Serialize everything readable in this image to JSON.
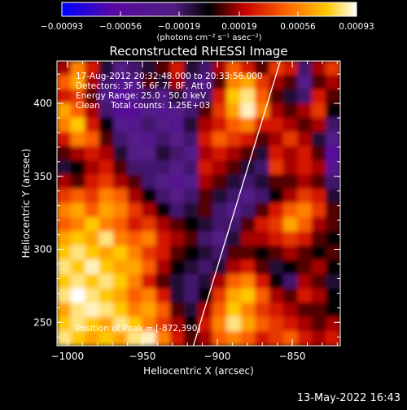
{
  "colorbar": {
    "ticks": [
      "-0.00093",
      "-0.00056",
      "-0.00019",
      "0.00019",
      "0.00056",
      "0.00093"
    ],
    "unit_label": "(photons cm⁻² s⁻¹ asec⁻²)"
  },
  "plot": {
    "title": "Reconstructed RHESSI Image",
    "xlabel": "Heliocentric X (arcsec)",
    "ylabel": "Heliocentric Y (arcsec)",
    "info": [
      "17-Aug-2012 20:32:48.000 to 20:33:56.000",
      "Detectors: 3F 5F 6F 7F 8F, Att 0",
      "Energy Range: 25.0 - 50.0 keV",
      "Clean    Total counts: 1.25E+03"
    ],
    "peak_label": "Position of Peak = [-872,390]"
  },
  "footer": {
    "timestamp": "13-May-2022 16:43"
  },
  "chart_data": {
    "type": "heatmap",
    "title": "Reconstructed RHESSI Image",
    "xlabel": "Heliocentric X (arcsec)",
    "ylabel": "Heliocentric Y (arcsec)",
    "xlim": [
      -1007,
      -818
    ],
    "ylim": [
      234,
      429
    ],
    "xticks": [
      -1000,
      -950,
      -900,
      -850
    ],
    "yticks": [
      250,
      300,
      350,
      400
    ],
    "colorbar_range": [
      -0.00093,
      0.00093
    ],
    "colorbar_ticks": [
      -0.00093,
      -0.00056,
      -0.00019,
      0.00019,
      0.00056,
      0.00093
    ],
    "colormap": [
      "#0000ff",
      "#5a0aa0",
      "#501e82",
      "#000000",
      "#c80000",
      "#ff6400",
      "#ffc800",
      "#ffffff"
    ],
    "peak_position": [
      -872,
      390
    ],
    "limb_line": [
      [
        -916,
        234
      ],
      [
        -858,
        429
      ]
    ],
    "field_rows": 20,
    "field_cols": 20,
    "field": [
      [
        0.2,
        0.6,
        0.3,
        -0.1,
        -0.3,
        -0.2,
        -0.1,
        0.1,
        0.3,
        -0.1,
        -0.2,
        0.2,
        0.5,
        0.3,
        0.1,
        0.4,
        0.3,
        -0.2,
        0.2,
        0.4
      ],
      [
        0.5,
        0.7,
        0.2,
        -0.2,
        -0.4,
        -0.3,
        0.1,
        -0.1,
        0.2,
        -0.2,
        -0.3,
        0.1,
        0.6,
        0.7,
        0.4,
        0.2,
        0.1,
        -0.3,
        0.1,
        0.2
      ],
      [
        0.3,
        0.4,
        0.1,
        -0.3,
        -0.6,
        -0.4,
        -0.2,
        -0.3,
        -0.1,
        -0.3,
        -0.2,
        0.3,
        0.8,
        0.9,
        0.5,
        0.1,
        -0.1,
        -0.2,
        0.3,
        0.1
      ],
      [
        0.7,
        0.5,
        0.2,
        -0.2,
        -0.5,
        -0.5,
        -0.3,
        -0.4,
        -0.3,
        -0.2,
        0.1,
        0.4,
        0.7,
        0.95,
        0.6,
        0.2,
        0.1,
        0.2,
        0.4,
        0.0
      ],
      [
        0.6,
        0.8,
        0.3,
        0.0,
        -0.3,
        -0.4,
        -0.2,
        -0.3,
        -0.4,
        -0.1,
        0.2,
        0.3,
        0.5,
        0.6,
        0.3,
        0.3,
        0.2,
        0.1,
        0.2,
        -0.2
      ],
      [
        0.3,
        0.6,
        0.5,
        0.1,
        -0.2,
        -0.3,
        -0.4,
        -0.2,
        -0.3,
        -0.2,
        0.3,
        0.5,
        0.4,
        0.3,
        0.1,
        0.2,
        0.4,
        0.2,
        -0.1,
        -0.3
      ],
      [
        0.1,
        0.2,
        0.3,
        0.2,
        -0.1,
        -0.3,
        -0.3,
        -0.1,
        -0.2,
        -0.3,
        0.2,
        0.3,
        0.2,
        0.1,
        -0.1,
        0.3,
        0.2,
        0.3,
        0.1,
        -0.6
      ],
      [
        -0.1,
        0.0,
        0.2,
        0.3,
        0.1,
        -0.2,
        -0.2,
        -0.2,
        -0.3,
        -0.2,
        0.3,
        0.2,
        0.1,
        -0.1,
        -0.2,
        0.4,
        0.2,
        0.3,
        0.2,
        -0.4
      ],
      [
        0.2,
        0.1,
        0.3,
        0.4,
        0.2,
        0.1,
        -0.2,
        -0.3,
        -0.4,
        -0.3,
        0.2,
        0.1,
        -0.1,
        -0.2,
        -0.1,
        0.1,
        0.1,
        0.2,
        0.1,
        -0.2
      ],
      [
        0.4,
        0.5,
        0.4,
        0.6,
        0.5,
        0.2,
        0.0,
        -0.2,
        -0.3,
        -0.2,
        0.1,
        -0.1,
        -0.2,
        -0.3,
        -0.2,
        0.0,
        0.2,
        0.4,
        0.3,
        -0.1
      ],
      [
        0.6,
        0.7,
        0.5,
        0.7,
        0.6,
        0.4,
        0.2,
        0.0,
        -0.2,
        -0.1,
        0.1,
        -0.2,
        -0.3,
        -0.2,
        0.1,
        0.3,
        0.5,
        0.6,
        0.4,
        0.1
      ],
      [
        0.5,
        0.6,
        0.8,
        0.6,
        0.5,
        0.3,
        0.4,
        0.2,
        0.1,
        0.0,
        -0.1,
        -0.2,
        -0.2,
        0.1,
        0.3,
        0.4,
        0.7,
        0.5,
        0.2,
        0.1
      ],
      [
        0.7,
        0.8,
        0.7,
        0.9,
        0.6,
        0.5,
        0.6,
        0.3,
        0.2,
        0.1,
        -0.2,
        -0.3,
        -0.1,
        0.2,
        0.2,
        0.3,
        0.4,
        0.3,
        0.1,
        0.0
      ],
      [
        0.8,
        0.9,
        0.8,
        0.7,
        0.8,
        0.6,
        0.4,
        0.3,
        0.1,
        0.0,
        -0.1,
        -0.2,
        0.1,
        0.1,
        0.0,
        0.1,
        0.2,
        0.1,
        0.0,
        0.1
      ],
      [
        0.9,
        0.8,
        0.95,
        0.8,
        0.7,
        0.7,
        0.5,
        0.2,
        0.0,
        -0.1,
        -0.2,
        -0.1,
        0.2,
        0.3,
        0.1,
        -0.1,
        0.0,
        0.1,
        0.2,
        0.0
      ],
      [
        0.8,
        0.9,
        0.8,
        0.9,
        0.8,
        0.6,
        0.3,
        0.1,
        -0.1,
        -0.2,
        -0.1,
        0.2,
        0.5,
        0.6,
        0.3,
        0.0,
        -0.2,
        0.2,
        0.1,
        -0.1
      ],
      [
        0.9,
        1.0,
        0.9,
        0.8,
        0.7,
        0.5,
        0.6,
        0.3,
        -0.1,
        -0.2,
        0.0,
        0.4,
        0.7,
        0.8,
        0.5,
        0.2,
        0.1,
        0.3,
        0.2,
        0.0
      ],
      [
        0.7,
        0.9,
        0.95,
        0.9,
        0.8,
        0.6,
        0.7,
        0.5,
        0.1,
        -0.1,
        0.2,
        0.5,
        0.8,
        0.6,
        0.4,
        0.3,
        0.2,
        0.1,
        0.1,
        0.0
      ],
      [
        0.8,
        0.9,
        0.8,
        0.7,
        0.9,
        0.8,
        0.6,
        0.4,
        0.2,
        0.0,
        0.3,
        0.6,
        0.9,
        0.7,
        0.5,
        0.4,
        0.3,
        0.2,
        0.1,
        0.2
      ],
      [
        0.9,
        0.8,
        0.7,
        0.8,
        0.7,
        0.9,
        0.95,
        0.6,
        0.3,
        0.1,
        0.2,
        0.5,
        0.6,
        0.5,
        0.3,
        0.4,
        0.5,
        0.3,
        0.2,
        0.3
      ]
    ]
  }
}
